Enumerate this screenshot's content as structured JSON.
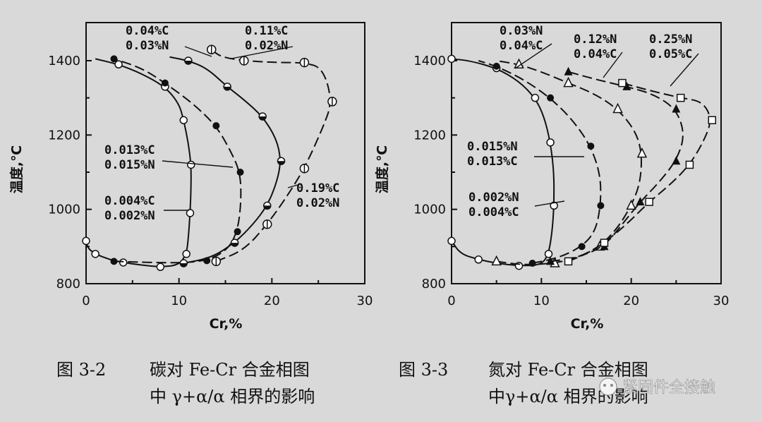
{
  "chart_data": [
    {
      "type": "scatter",
      "xlabel": "Cr,%",
      "ylabel": "温度,℃",
      "xlim": [
        0,
        30
      ],
      "ylim": [
        800,
        1450
      ],
      "xticks": [
        0,
        10,
        20,
        30
      ],
      "yticks": [
        800,
        1000,
        1200,
        1400
      ],
      "caption_num": "图 3-2",
      "caption_line1": "碳对 Fe-Cr 合金相图",
      "caption_line2": "中 γ+α/α 相界的影响",
      "annotations": [
        {
          "lines": [
            "0.04%C",
            "0.03%N"
          ]
        },
        {
          "lines": [
            "0.11%C",
            "0.02%N"
          ]
        },
        {
          "lines": [
            "0.013%C",
            "0.015%N"
          ]
        },
        {
          "lines": [
            "0.004%C",
            "0.002%N"
          ]
        },
        {
          "lines": [
            "0.19%C",
            "0.02%N"
          ]
        }
      ],
      "series": [
        {
          "marker": "open-circle",
          "dash": "solid",
          "points": [
            [
              0,
              915
            ],
            [
              0.2,
              895
            ],
            [
              1,
              880
            ],
            [
              2.5,
              865
            ],
            [
              4,
              857
            ],
            [
              6,
              850
            ],
            [
              8,
              845
            ],
            [
              10,
              850
            ],
            [
              10.8,
              880
            ],
            [
              11,
              920
            ],
            [
              11.2,
              990
            ],
            [
              11.3,
              1060
            ],
            [
              11.3,
              1120
            ],
            [
              11,
              1180
            ],
            [
              10.5,
              1240
            ],
            [
              10,
              1285
            ],
            [
              8.5,
              1330
            ],
            [
              6,
              1365
            ],
            [
              3.5,
              1390
            ],
            [
              1,
              1405
            ]
          ]
        },
        {
          "marker": "filled-circle",
          "dash": "dash",
          "points": [
            [
              3,
              860
            ],
            [
              10,
              855
            ],
            [
              13,
              862
            ],
            [
              15.2,
              890
            ],
            [
              16.3,
              940
            ],
            [
              16.7,
              1020
            ],
            [
              16.6,
              1100
            ],
            [
              15.5,
              1160
            ],
            [
              14,
              1225
            ],
            [
              11.5,
              1285
            ],
            [
              8.5,
              1340
            ],
            [
              6,
              1380
            ],
            [
              3,
              1405
            ]
          ]
        },
        {
          "marker": "half-circle",
          "dash": "solid",
          "points": [
            [
              10.5,
              855
            ],
            [
              13.5,
              870
            ],
            [
              16,
              910
            ],
            [
              18,
              960
            ],
            [
              19.5,
              1010
            ],
            [
              20.5,
              1070
            ],
            [
              21,
              1130
            ],
            [
              20.5,
              1190
            ],
            [
              19,
              1250
            ],
            [
              17,
              1295
            ],
            [
              15.2,
              1330
            ],
            [
              13,
              1380
            ],
            [
              11,
              1400
            ],
            [
              9,
              1410
            ]
          ]
        },
        {
          "marker": "crossed-circle",
          "dash": "dash",
          "points": [
            [
              14,
              860
            ],
            [
              17,
              890
            ],
            [
              19.5,
              960
            ],
            [
              21.5,
              1030
            ],
            [
              23.5,
              1110
            ],
            [
              25.5,
              1220
            ],
            [
              26.5,
              1290
            ],
            [
              25.5,
              1380
            ],
            [
              23.5,
              1395
            ],
            [
              20.5,
              1395
            ],
            [
              17,
              1400
            ],
            [
              14.5,
              1410
            ],
            [
              13.5,
              1430
            ]
          ]
        }
      ]
    },
    {
      "type": "scatter",
      "xlabel": "Cr,%",
      "ylabel": "温度,℃",
      "xlim": [
        0,
        30
      ],
      "ylim": [
        800,
        1450
      ],
      "xticks": [
        0,
        10,
        20,
        30
      ],
      "yticks": [
        800,
        1000,
        1200,
        1400
      ],
      "caption_num": "图 3-3",
      "caption_line1": "氮对 Fe-Cr 合金相图",
      "caption_line2": "中γ+α/α 相界的影响",
      "annotations": [
        {
          "lines": [
            "0.03%N",
            "0.04%C"
          ]
        },
        {
          "lines": [
            "0.12%N",
            "0.04%C"
          ]
        },
        {
          "lines": [
            "0.25%N",
            "0.05%C"
          ]
        },
        {
          "lines": [
            "0.015%N",
            "0.013%C"
          ]
        },
        {
          "lines": [
            "0.002%N",
            "0.004%C"
          ]
        }
      ],
      "series": [
        {
          "marker": "open-circle",
          "dash": "solid",
          "points": [
            [
              0,
              915
            ],
            [
              1,
              880
            ],
            [
              3,
              865
            ],
            [
              5,
              855
            ],
            [
              7.5,
              848
            ],
            [
              10,
              850
            ],
            [
              10.8,
              880
            ],
            [
              11.2,
              940
            ],
            [
              11.4,
              1010
            ],
            [
              11.4,
              1100
            ],
            [
              11,
              1180
            ],
            [
              10.3,
              1250
            ],
            [
              9.3,
              1300
            ],
            [
              7.5,
              1345
            ],
            [
              5,
              1380
            ],
            [
              2,
              1400
            ],
            [
              0,
              1405
            ]
          ]
        },
        {
          "marker": "filled-circle",
          "dash": "dash",
          "points": [
            [
              9,
              855
            ],
            [
              12,
              870
            ],
            [
              14.5,
              900
            ],
            [
              16,
              940
            ],
            [
              16.6,
              1010
            ],
            [
              16.6,
              1090
            ],
            [
              15.5,
              1170
            ],
            [
              13.5,
              1240
            ],
            [
              11,
              1300
            ],
            [
              8,
              1350
            ],
            [
              5,
              1385
            ],
            [
              3,
              1400
            ]
          ]
        },
        {
          "marker": "open-triangle",
          "dash": "dash",
          "points": [
            [
              5,
              860
            ],
            [
              8,
              850
            ],
            [
              11.5,
              855
            ],
            [
              14,
              870
            ],
            [
              16.5,
              900
            ],
            [
              18.5,
              950
            ],
            [
              20,
              1010
            ],
            [
              21,
              1070
            ],
            [
              21.2,
              1150
            ],
            [
              20.5,
              1210
            ],
            [
              18.5,
              1270
            ],
            [
              16,
              1310
            ],
            [
              13,
              1340
            ],
            [
              10,
              1370
            ],
            [
              7.5,
              1390
            ],
            [
              5,
              1400
            ]
          ]
        },
        {
          "marker": "filled-triangle",
          "dash": "dash",
          "points": [
            [
              11,
              860
            ],
            [
              14,
              870
            ],
            [
              17,
              900
            ],
            [
              19,
              960
            ],
            [
              21,
              1020
            ],
            [
              23,
              1070
            ],
            [
              25,
              1130
            ],
            [
              26,
              1200
            ],
            [
              25,
              1270
            ],
            [
              22.5,
              1310
            ],
            [
              19.5,
              1330
            ],
            [
              16,
              1350
            ],
            [
              13,
              1370
            ]
          ]
        },
        {
          "marker": "open-square",
          "dash": "dash",
          "points": [
            [
              13,
              860
            ],
            [
              15,
              880
            ],
            [
              17,
              910
            ],
            [
              19.5,
              960
            ],
            [
              22,
              1020
            ],
            [
              24.5,
              1070
            ],
            [
              26.5,
              1120
            ],
            [
              28,
              1180
            ],
            [
              29,
              1240
            ],
            [
              28,
              1290
            ],
            [
              25.5,
              1300
            ],
            [
              22,
              1320
            ],
            [
              19,
              1340
            ]
          ]
        }
      ]
    }
  ],
  "watermark": "紧固件全接触"
}
